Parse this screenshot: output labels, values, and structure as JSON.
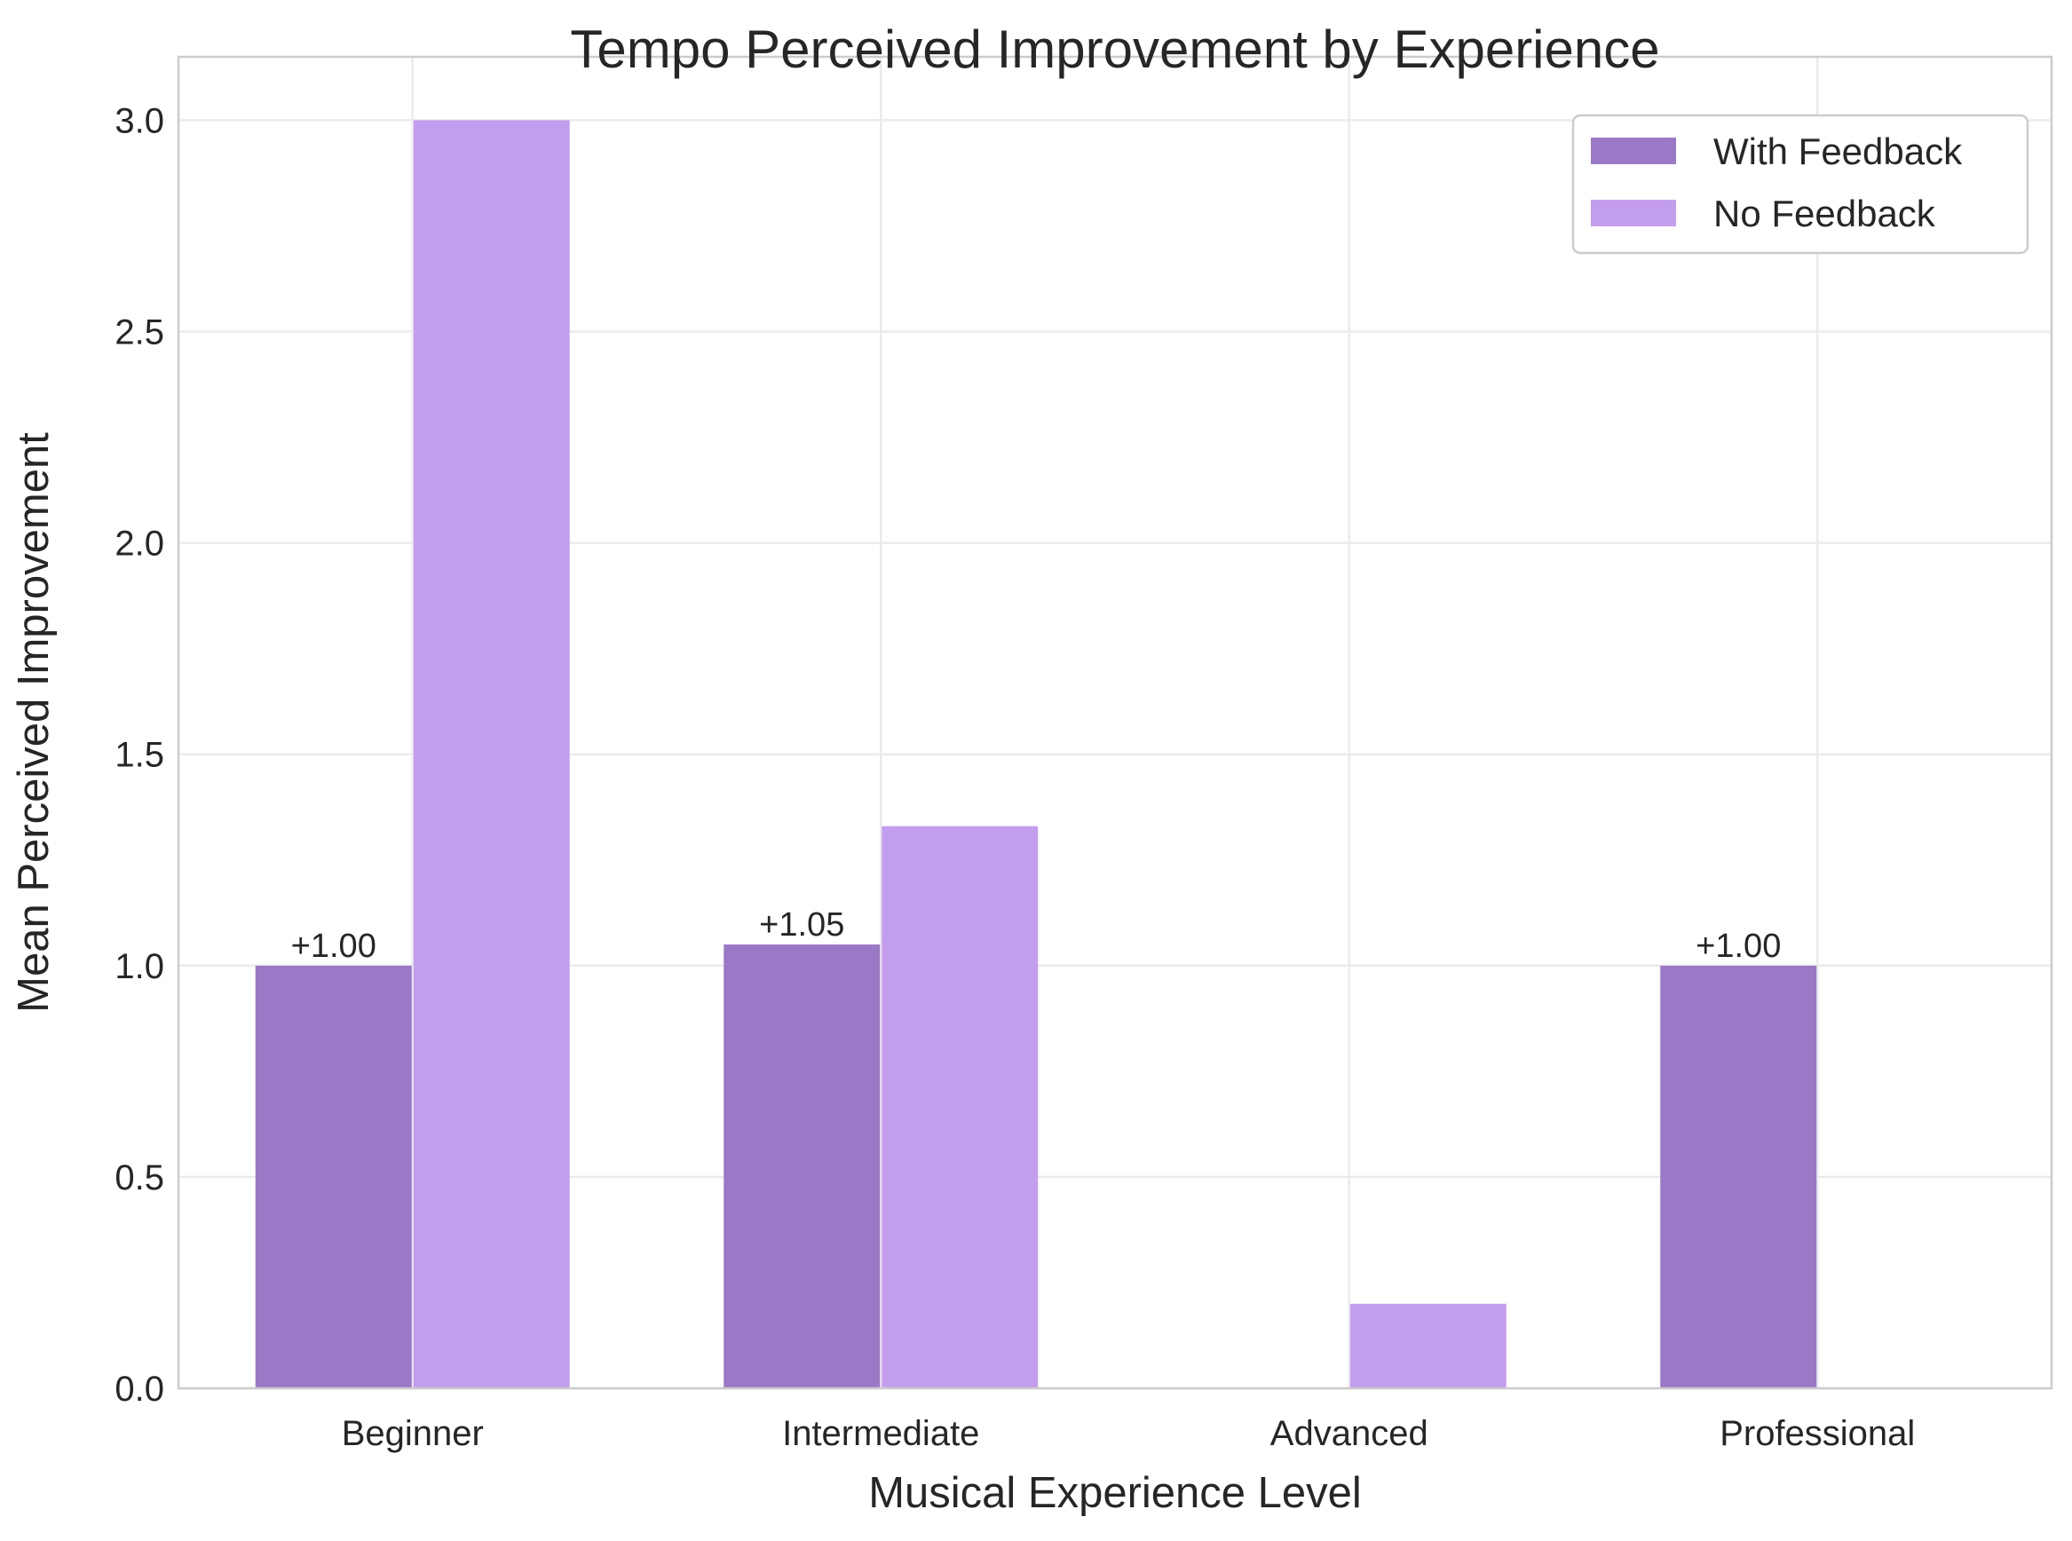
{
  "chart_data": {
    "type": "bar",
    "title": "Tempo Perceived Improvement by Experience",
    "xlabel": "Musical Experience Level",
    "ylabel": "Mean Perceived Improvement",
    "categories": [
      "Beginner",
      "Intermediate",
      "Advanced",
      "Professional"
    ],
    "series": [
      {
        "name": "With Feedback",
        "color": "#9b79c6",
        "values": [
          1.0,
          1.05,
          null,
          1.0
        ]
      },
      {
        "name": "No Feedback",
        "color": "#c49eee",
        "values": [
          3.0,
          1.33,
          0.2,
          null
        ]
      }
    ],
    "data_labels": [
      "+1.00",
      "+1.05",
      "",
      "+1.00"
    ],
    "ylim": [
      0,
      3.15
    ],
    "yticks": [
      "0.0",
      "0.5",
      "1.0",
      "1.5",
      "2.0",
      "2.5",
      "3.0"
    ],
    "grid": true,
    "legend_position": "top-right"
  }
}
